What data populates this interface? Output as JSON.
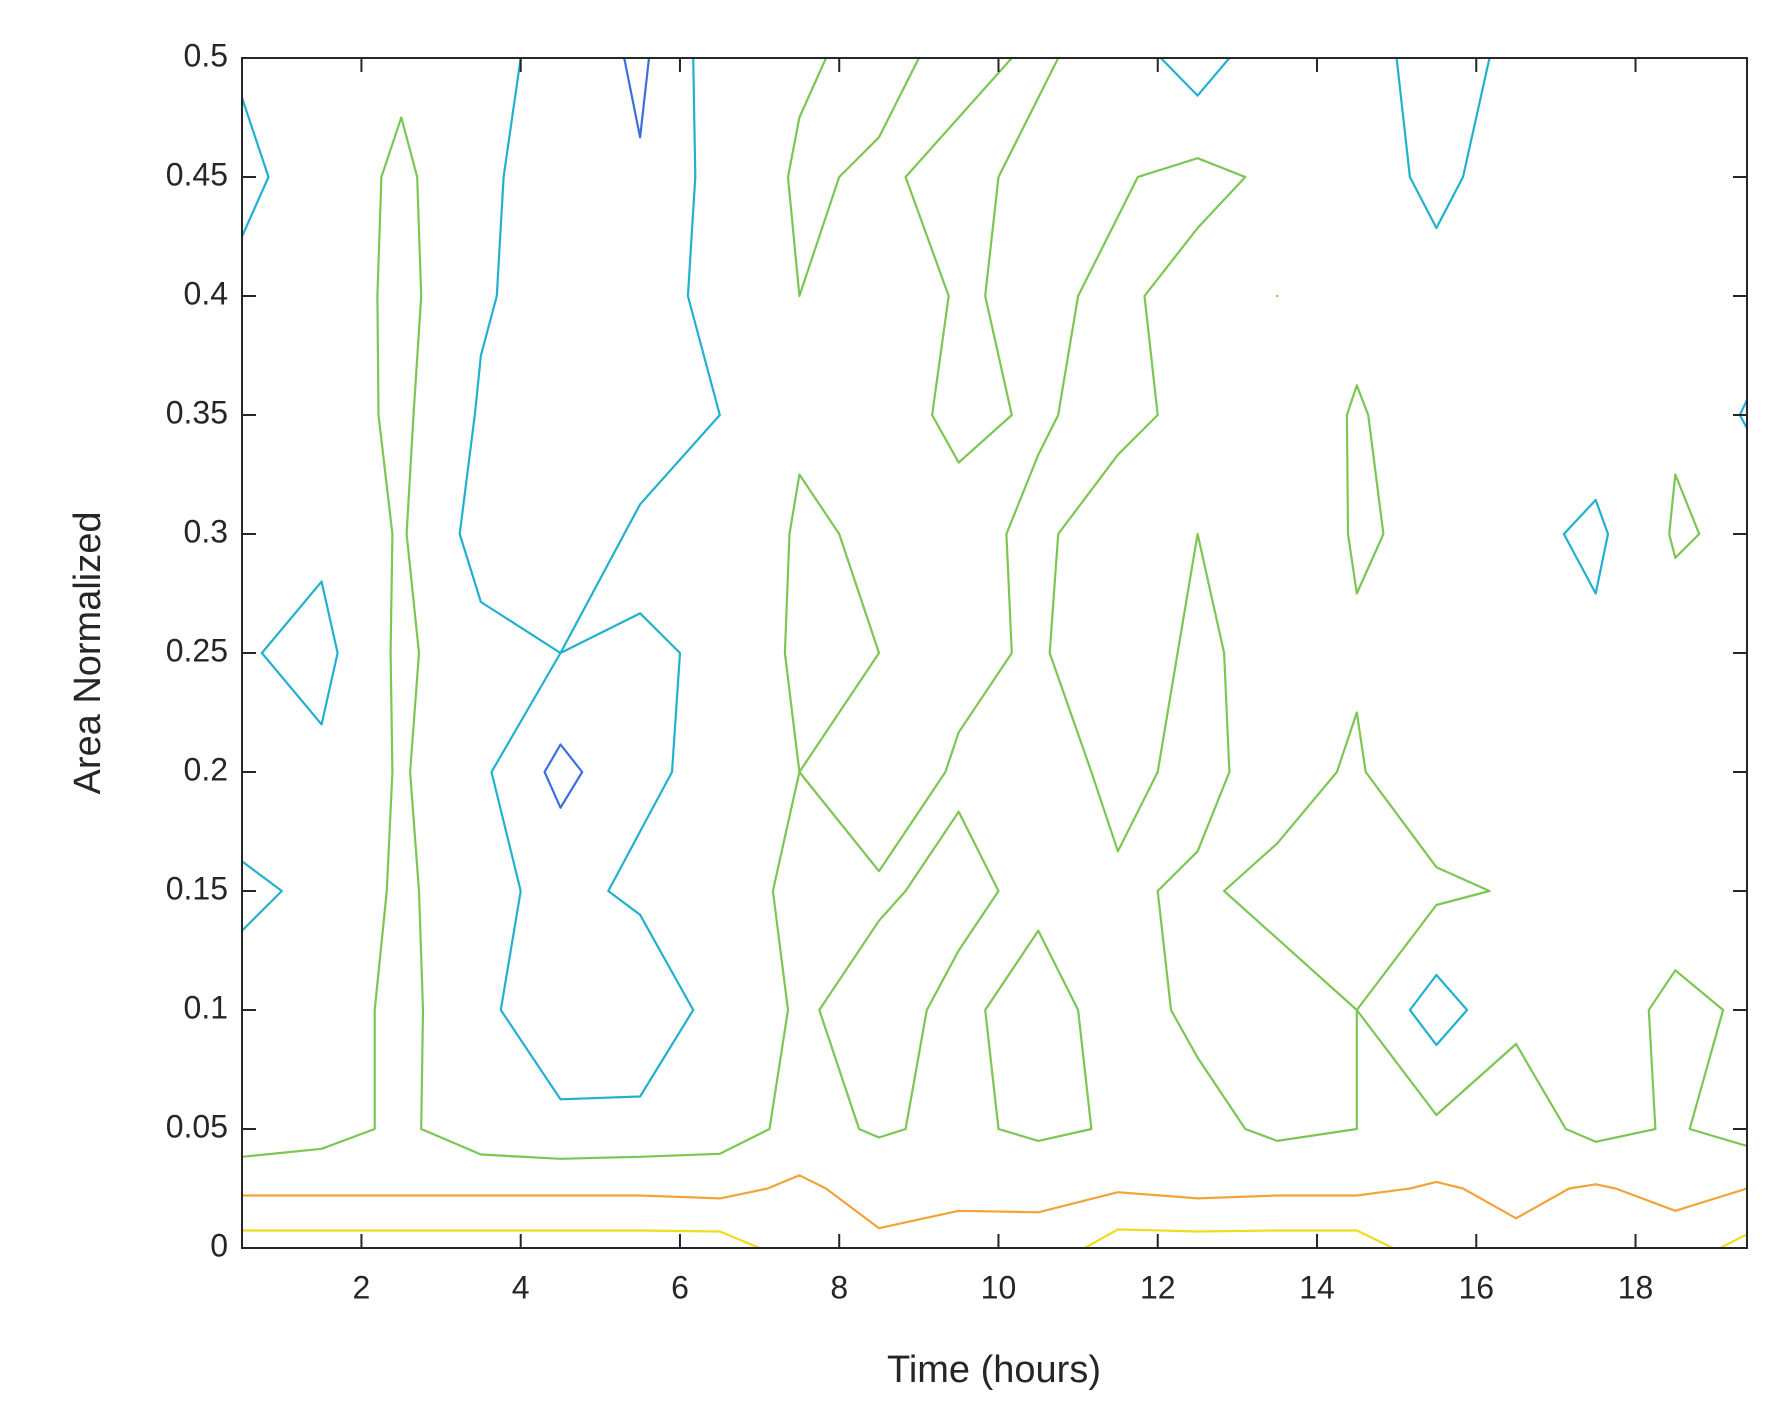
{
  "chart_data": {
    "type": "contour",
    "xlabel": "Time (hours)",
    "ylabel": "Area Normalized",
    "xlim": [
      0.5,
      19.4
    ],
    "ylim": [
      0,
      0.5
    ],
    "xticks": [
      2,
      4,
      6,
      8,
      10,
      12,
      14,
      16,
      18
    ],
    "yticks": [
      0,
      0.05,
      0.1,
      0.15,
      0.2,
      0.25,
      0.3,
      0.35,
      0.4,
      0.45,
      0.5
    ],
    "levels": [
      2,
      3,
      4,
      5,
      6
    ],
    "colors": [
      "#3b6fe0",
      "#22b0cf",
      "#7cc653",
      "#f2a33a",
      "#eedd1e"
    ],
    "x": [
      0.5,
      1.5,
      2.5,
      3.5,
      4.5,
      5.5,
      6.5,
      7.5,
      8.5,
      9.5,
      10.5,
      11.5,
      12.5,
      13.5,
      14.5,
      15.5,
      16.5,
      17.5,
      18.5,
      19.4
    ],
    "y": [
      0,
      0.025,
      0.05,
      0.1,
      0.15,
      0.2,
      0.25,
      0.3,
      0.35,
      0.4,
      0.45,
      0.5
    ],
    "z": [
      [
        6.5,
        6.5,
        6.5,
        6.5,
        6.5,
        6.5,
        6.5,
        5.5,
        5.2,
        5.5,
        5.3,
        6.5,
        6.5,
        6.5,
        6.5,
        5.4,
        5.2,
        5.3,
        5.5,
        6.3
      ],
      [
        4.8,
        4.8,
        4.8,
        4.8,
        4.8,
        4.8,
        4.7,
        5.2,
        4.6,
        4.7,
        4.8,
        4.9,
        4.7,
        4.8,
        4.8,
        5.1,
        4.8,
        5.1,
        4.7,
        5.0
      ],
      [
        3.3,
        3.6,
        4.2,
        3.4,
        3.2,
        3.3,
        3.5,
        4.3,
        3.9,
        4.2,
        3.8,
        4.1,
        4.3,
        3.8,
        4.0,
        4.2,
        4.5,
        3.7,
        4.1,
        3.6
      ],
      [
        3.2,
        3.4,
        4.3,
        3.2,
        2.4,
        2.2,
        3.4,
        4.1,
        3.7,
        4.2,
        3.6,
        4.4,
        3.8,
        3.7,
        4.0,
        2.5,
        3.8,
        3.6,
        4.2,
        3.9
      ],
      [
        2.9,
        3.1,
        4.2,
        3.3,
        2.7,
        3.2,
        3.4,
        4.3,
        4.1,
        3.8,
        4.2,
        4.1,
        3.9,
        4.2,
        4.6,
        4.2,
        3.9,
        3.5,
        3.6,
        3.8
      ],
      [
        3.3,
        3.2,
        4.1,
        3.2,
        1.7,
        2.8,
        3.3,
        4.0,
        3.5,
        4.1,
        4.4,
        3.8,
        4.2,
        3.7,
        4.1,
        3.2,
        3.7,
        3.4,
        3.8,
        3.5
      ],
      [
        3.1,
        2.7,
        4.2,
        3.3,
        3.0,
        2.9,
        3.1,
        4.2,
        4.0,
        3.8,
        4.1,
        3.4,
        4.2,
        3.6,
        3.9,
        3.3,
        3.7,
        3.2,
        3.6,
        3.9
      ],
      [
        3.4,
        3.2,
        4.1,
        2.6,
        2.2,
        3.2,
        3.3,
        4.1,
        3.9,
        3.7,
        4.2,
        3.4,
        4.0,
        3.2,
        4.1,
        3.8,
        3.3,
        2.8,
        4.1,
        3.8
      ],
      [
        3.3,
        3.5,
        4.2,
        2.9,
        2.3,
        2.4,
        3.0,
        3.9,
        3.6,
        4.2,
        3.9,
        4.3,
        3.7,
        3.3,
        4.1,
        3.4,
        3.8,
        3.5,
        3.9,
        2.9
      ],
      [
        3.2,
        3.3,
        4.3,
        3.1,
        2.6,
        2.4,
        3.4,
        4.0,
        3.3,
        4.1,
        3.8,
        4.2,
        3.6,
        4.0,
        3.7,
        3.4,
        3.8,
        3.3,
        3.6,
        3.7
      ],
      [
        2.8,
        3.4,
        4.2,
        3.2,
        2.5,
        2.1,
        3.4,
        4.1,
        3.9,
        4.2,
        3.8,
        3.9,
        4.3,
        3.8,
        3.6,
        2.7,
        3.6,
        3.8,
        3.3,
        3.9
      ],
      [
        3.1,
        3.3,
        3.8,
        3.2,
        2.8,
        1.8,
        3.6,
        3.9,
        4.2,
        3.8,
        4.1,
        3.7,
        2.4,
        3.9,
        3.8,
        2.2,
        3.4,
        3.6,
        3.7,
        3.9
      ]
    ]
  }
}
